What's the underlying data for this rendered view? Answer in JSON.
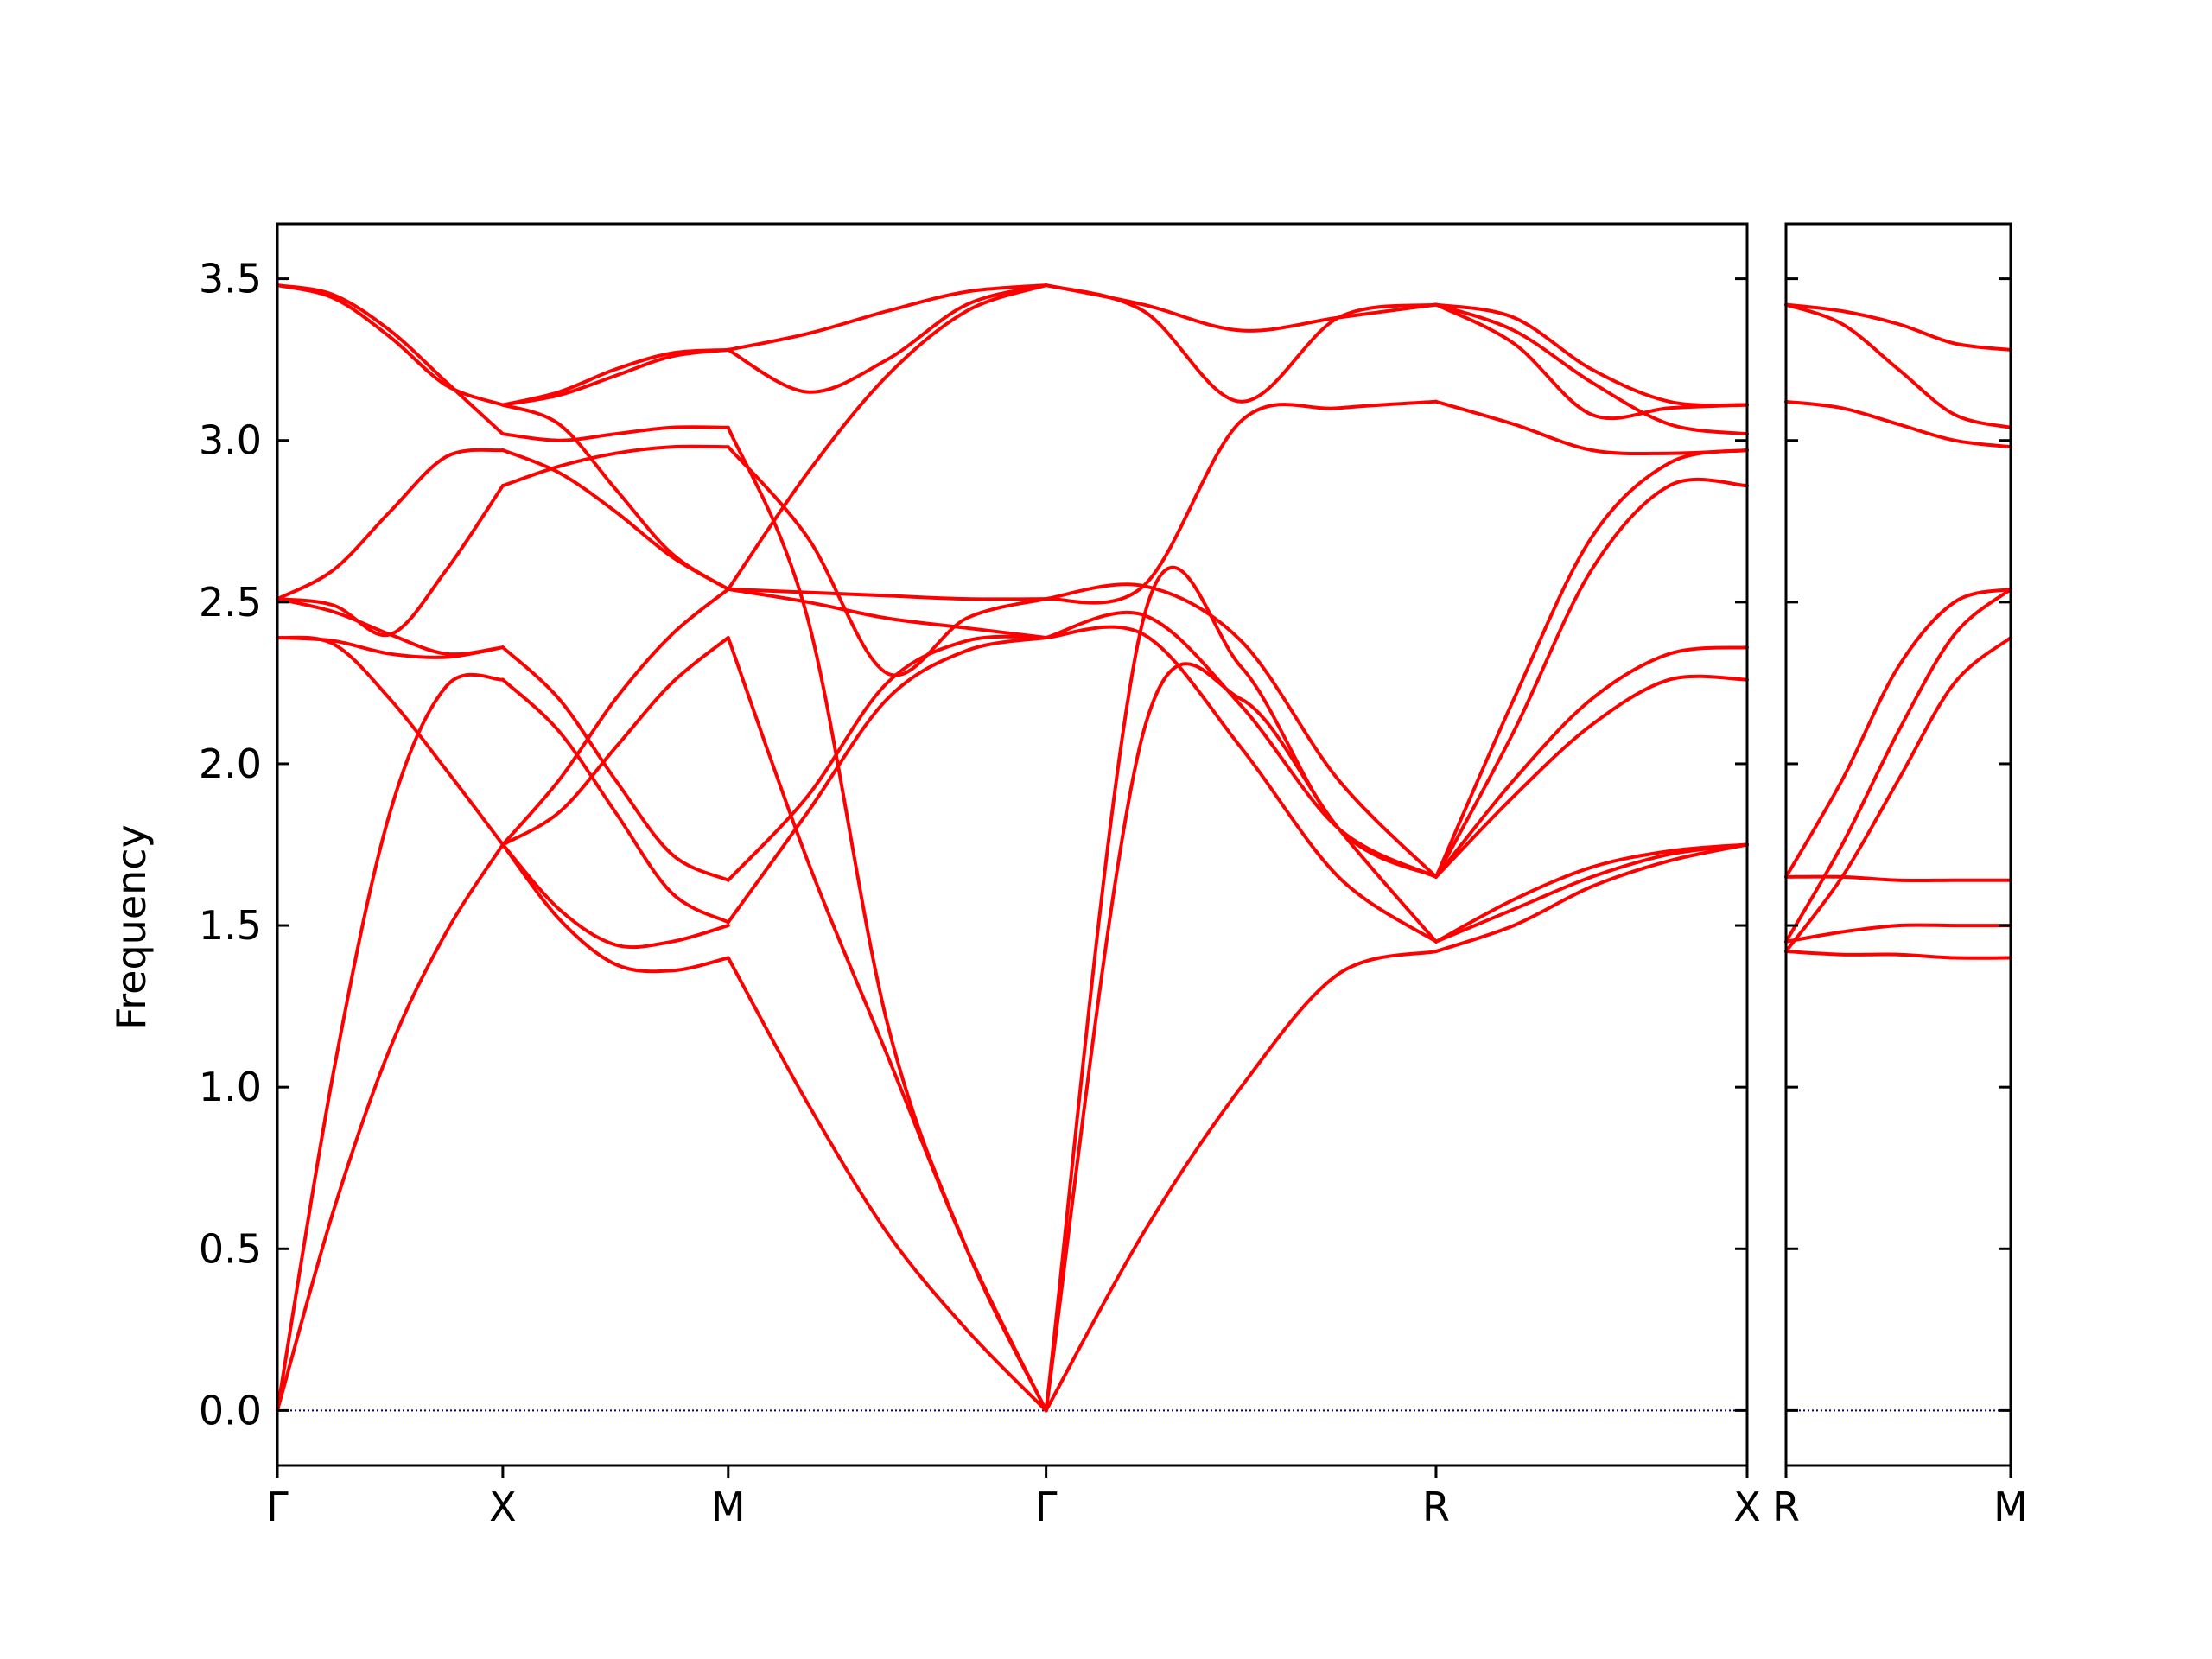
{
  "chart_data": {
    "type": "line",
    "ylabel": "Frequency",
    "ylim": [
      -0.17,
      3.67
    ],
    "yticks": [
      0.0,
      0.5,
      1.0,
      1.5,
      2.0,
      2.5,
      3.0,
      3.5
    ],
    "ytick_labels": [
      "0.0",
      "0.5",
      "1.0",
      "1.5",
      "2.0",
      "2.5",
      "3.0",
      "3.5"
    ],
    "line_color": "#ff0000",
    "zero_line_color": "#00008b",
    "grid": false,
    "panels": [
      {
        "xlim": [
          0,
          6.52
        ],
        "ticks": [
          {
            "x": 0.0,
            "label": "Γ"
          },
          {
            "x": 1.0,
            "label": "X"
          },
          {
            "x": 2.0,
            "label": "M"
          },
          {
            "x": 3.41,
            "label": "Γ"
          },
          {
            "x": 5.14,
            "label": "R"
          },
          {
            "x": 6.52,
            "label": "X"
          }
        ],
        "segments": [
          {
            "x0": 0.0,
            "x1": 1.0,
            "bands": [
              [
                0.0,
                0.62,
                1.12,
                1.48,
                1.75
              ],
              [
                0.0,
                1.05,
                1.85,
                2.24,
                2.26
              ],
              [
                2.39,
                2.37,
                2.2,
                1.98,
                1.75
              ],
              [
                2.39,
                2.38,
                2.34,
                2.33,
                2.36
              ],
              [
                2.51,
                2.47,
                2.4,
                2.34,
                2.36
              ],
              [
                2.51,
                2.6,
                2.78,
                2.95,
                2.97
              ],
              [
                2.51,
                2.49,
                2.4,
                2.6,
                2.86
              ],
              [
                3.48,
                3.45,
                3.34,
                3.18,
                3.02
              ],
              [
                3.48,
                3.44,
                3.32,
                3.17,
                3.11
              ]
            ]
          },
          {
            "x0": 1.0,
            "x1": 2.0,
            "bands": [
              [
                1.75,
                1.52,
                1.38,
                1.36,
                1.4
              ],
              [
                1.75,
                1.55,
                1.44,
                1.45,
                1.5
              ],
              [
                1.75,
                1.85,
                2.05,
                2.25,
                2.39
              ],
              [
                1.75,
                1.95,
                2.2,
                2.4,
                2.54
              ],
              [
                2.26,
                2.1,
                1.85,
                1.6,
                1.51
              ],
              [
                2.36,
                2.2,
                1.95,
                1.72,
                1.64
              ],
              [
                2.97,
                2.9,
                2.78,
                2.64,
                2.54
              ],
              [
                2.86,
                2.92,
                2.96,
                2.98,
                2.98
              ],
              [
                3.11,
                3.05,
                2.85,
                2.65,
                2.54
              ],
              [
                3.02,
                3.0,
                3.02,
                3.04,
                3.04
              ],
              [
                3.11,
                3.15,
                3.22,
                3.27,
                3.28
              ],
              [
                3.11,
                3.14,
                3.2,
                3.26,
                3.28
              ]
            ]
          },
          {
            "x0": 2.0,
            "x1": 3.41,
            "bands": [
              [
                1.4,
                0.95,
                0.55,
                0.25,
                0.0
              ],
              [
                2.39,
                1.7,
                1.1,
                0.5,
                0.0
              ],
              [
                3.04,
                2.45,
                1.2,
                0.5,
                0.0
              ],
              [
                1.51,
                1.85,
                2.2,
                2.35,
                2.39
              ],
              [
                1.64,
                1.9,
                2.25,
                2.38,
                2.39
              ],
              [
                2.54,
                2.5,
                2.45,
                2.42,
                2.39
              ],
              [
                2.98,
                2.7,
                2.28,
                2.45,
                2.51
              ],
              [
                2.54,
                2.53,
                2.52,
                2.51,
                2.51
              ],
              [
                2.54,
                2.9,
                3.2,
                3.4,
                3.48
              ],
              [
                3.28,
                3.15,
                3.25,
                3.42,
                3.48
              ],
              [
                3.28,
                3.33,
                3.4,
                3.46,
                3.48
              ]
            ]
          },
          {
            "x0": 3.41,
            "x1": 5.14,
            "bands": [
              [
                0.0,
                0.55,
                1.0,
                1.35,
                1.42
              ],
              [
                0.0,
                2.1,
                2.2,
                1.8,
                1.45
              ],
              [
                0.0,
                2.45,
                2.3,
                1.8,
                1.65
              ],
              [
                2.39,
                2.4,
                2.05,
                1.65,
                1.45
              ],
              [
                2.39,
                2.46,
                2.18,
                1.8,
                1.65
              ],
              [
                2.51,
                2.55,
                2.38,
                1.95,
                1.65
              ],
              [
                2.51,
                2.55,
                3.06,
                3.1,
                3.12
              ],
              [
                3.48,
                3.4,
                3.12,
                3.38,
                3.42
              ],
              [
                3.48,
                3.42,
                3.34,
                3.38,
                3.42
              ]
            ]
          },
          {
            "x0": 5.14,
            "x1": 6.52,
            "bands": [
              [
                1.42,
                1.5,
                1.62,
                1.7,
                1.75
              ],
              [
                1.45,
                1.55,
                1.65,
                1.72,
                1.75
              ],
              [
                1.45,
                1.58,
                1.68,
                1.73,
                1.75
              ],
              [
                1.65,
                1.9,
                2.12,
                2.26,
                2.26
              ],
              [
                1.65,
                1.95,
                2.2,
                2.34,
                2.36
              ],
              [
                1.65,
                2.2,
                2.7,
                2.93,
                2.97
              ],
              [
                1.65,
                2.1,
                2.6,
                2.86,
                2.86
              ],
              [
                3.12,
                3.05,
                2.97,
                2.96,
                2.97
              ],
              [
                3.42,
                3.34,
                3.18,
                3.05,
                3.02
              ],
              [
                3.42,
                3.3,
                3.08,
                3.1,
                3.11
              ],
              [
                3.42,
                3.38,
                3.22,
                3.12,
                3.11
              ]
            ]
          }
        ]
      },
      {
        "xlim": [
          0,
          1.0
        ],
        "ticks": [
          {
            "x": 0.0,
            "label": "R"
          },
          {
            "x": 1.0,
            "label": "M"
          }
        ],
        "segments": [
          {
            "x0": 0.0,
            "x1": 1.0,
            "bands": [
              [
                1.42,
                1.41,
                1.41,
                1.4,
                1.4
              ],
              [
                1.45,
                1.48,
                1.5,
                1.5,
                1.5
              ],
              [
                1.65,
                1.65,
                1.64,
                1.64,
                1.64
              ],
              [
                1.42,
                1.65,
                1.95,
                2.25,
                2.39
              ],
              [
                1.45,
                1.75,
                2.1,
                2.4,
                2.54
              ],
              [
                1.65,
                1.95,
                2.3,
                2.5,
                2.54
              ],
              [
                3.12,
                3.1,
                3.05,
                3.0,
                2.98
              ],
              [
                3.42,
                3.36,
                3.22,
                3.08,
                3.04
              ],
              [
                3.42,
                3.4,
                3.36,
                3.3,
                3.28
              ]
            ]
          }
        ]
      }
    ]
  }
}
